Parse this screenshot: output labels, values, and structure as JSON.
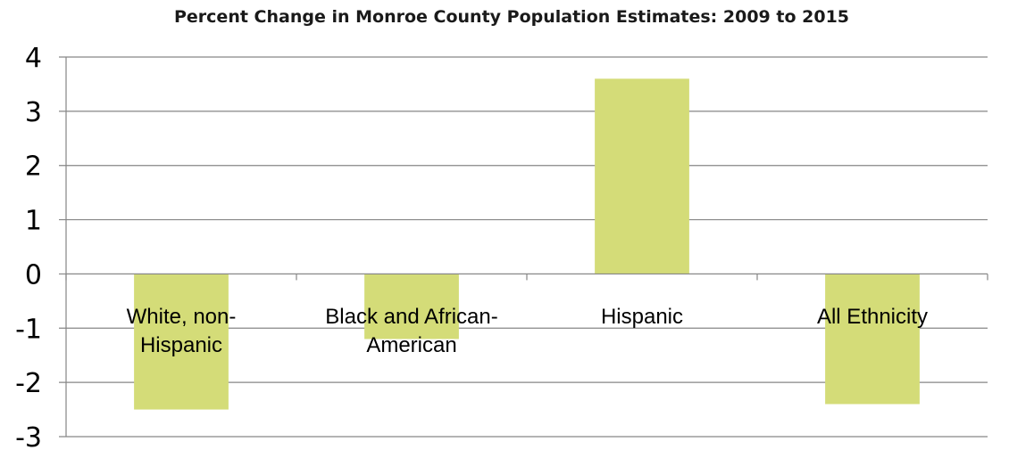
{
  "chart_data": {
    "type": "bar",
    "title": "Percent Change in Monroe County Population Estimates: 2009 to 2015",
    "categories": [
      [
        "White, non-",
        "Hispanic"
      ],
      [
        "Black and African-",
        "American"
      ],
      [
        "Hispanic"
      ],
      [
        "All Ethnicity"
      ]
    ],
    "values": [
      -2.5,
      -1.2,
      3.6,
      -2.4
    ],
    "ylim": [
      -3,
      4
    ],
    "yticks": [
      4,
      3,
      2,
      1,
      0,
      -1,
      -2,
      -3
    ],
    "ytick_labels": [
      "4",
      "3",
      "2",
      "1",
      "0",
      "-1",
      "-2",
      "-3"
    ],
    "grid": true,
    "legend": "none",
    "xlabel": "",
    "ylabel": "",
    "colors": {
      "bar": "#d4dc78",
      "grid": "#868686"
    }
  }
}
